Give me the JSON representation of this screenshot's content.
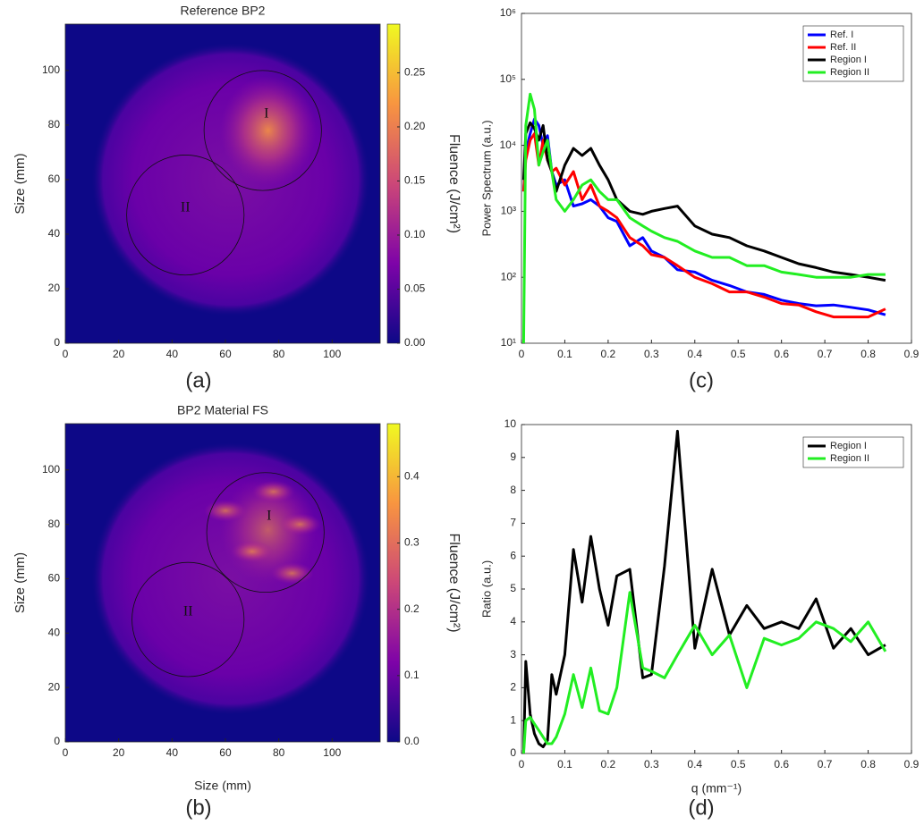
{
  "chart_data": [
    {
      "type": "image",
      "title": "Reference BP2",
      "ylabel": "Size (mm)",
      "panel": "(a)",
      "xlim": [
        0,
        118
      ],
      "ylim": [
        0,
        117
      ],
      "xticks": [
        0,
        20,
        40,
        60,
        80,
        100
      ],
      "yticks": [
        0,
        20,
        40,
        60,
        80,
        100
      ],
      "colorbar": {
        "label": "Fluence (J/cm²)",
        "lim": [
          0,
          0.295
        ],
        "ticks": [
          {
            "value": 0,
            "label": "0.00"
          },
          0.05,
          {
            "value": 0.1,
            "label": "0.10"
          },
          0.15,
          {
            "value": 0.2,
            "label": "0.20"
          },
          0.25
        ]
      },
      "annotations": [
        "I",
        "II"
      ]
    },
    {
      "type": "line",
      "ylabel": "Power Spectrum (a.u.)",
      "panel": "(c)",
      "log_y": true,
      "legend": "upper right",
      "xlim": [
        0,
        0.9
      ],
      "xticks": [
        0,
        0.1,
        0.2,
        0.3,
        0.4,
        0.5,
        0.6,
        0.7,
        0.8,
        0.9
      ],
      "ylim": [
        10,
        1000000
      ],
      "yticks": [
        {
          "value": 10,
          "label": "10¹"
        },
        {
          "value": 100,
          "label": "10²"
        },
        {
          "value": 1000,
          "label": "10³"
        },
        {
          "value": 10000,
          "label": "10⁴"
        },
        {
          "value": 100000,
          "label": "10⁵"
        },
        {
          "value": 1000000,
          "label": "10⁶"
        }
      ],
      "x": [
        0.005,
        0.01,
        0.02,
        0.03,
        0.04,
        0.05,
        0.06,
        0.07,
        0.08,
        0.1,
        0.12,
        0.14,
        0.16,
        0.18,
        0.2,
        0.22,
        0.25,
        0.28,
        0.3,
        0.33,
        0.36,
        0.4,
        0.44,
        0.48,
        0.52,
        0.56,
        0.6,
        0.64,
        0.68,
        0.72,
        0.76,
        0.8,
        0.84
      ],
      "series": [
        {
          "name": "Ref. I",
          "color": "#0000ff",
          "values": [
            2000,
            8000,
            15000,
            25000,
            20000,
            10000,
            14000,
            4000,
            2500,
            3000,
            1200,
            1300,
            1500,
            1200,
            800,
            700,
            300,
            400,
            250,
            200,
            130,
            120,
            90,
            75,
            60,
            55,
            45,
            40,
            37,
            38,
            35,
            32,
            27
          ]
        },
        {
          "name": "Ref. II",
          "color": "#ff0000",
          "values": [
            2000,
            6000,
            12000,
            15000,
            5000,
            12000,
            6000,
            4000,
            4500,
            2500,
            4000,
            1500,
            2500,
            1200,
            1000,
            800,
            400,
            300,
            220,
            200,
            150,
            100,
            80,
            60,
            60,
            50,
            40,
            38,
            30,
            25,
            25,
            25,
            33
          ]
        },
        {
          "name": "Region I",
          "color": "#000000",
          "values": [
            3000,
            15000,
            22000,
            18000,
            12000,
            20000,
            6000,
            4000,
            2000,
            5000,
            9000,
            7000,
            9000,
            5000,
            3000,
            1500,
            1000,
            900,
            1000,
            1100,
            1200,
            600,
            450,
            400,
            300,
            250,
            200,
            160,
            140,
            120,
            110,
            100,
            90
          ]
        },
        {
          "name": "Region II",
          "color": "#22ee22",
          "values": [
            10,
            20000,
            60000,
            35000,
            5000,
            8000,
            12000,
            4000,
            1500,
            1000,
            1500,
            2500,
            3000,
            2000,
            1500,
            1500,
            800,
            600,
            500,
            400,
            350,
            250,
            200,
            200,
            150,
            150,
            120,
            110,
            100,
            100,
            100,
            110,
            110
          ]
        }
      ]
    },
    {
      "type": "image",
      "title": "BP2 Material FS",
      "ylabel": "Size (mm)",
      "xlabel": "Size (mm)",
      "panel": "(b)",
      "xlim": [
        0,
        118
      ],
      "ylim": [
        0,
        117
      ],
      "xticks": [
        0,
        20,
        40,
        60,
        80,
        100
      ],
      "yticks": [
        0,
        20,
        40,
        60,
        80,
        100
      ],
      "colorbar": {
        "label": "Fluence (J/cm²)",
        "lim": [
          0,
          0.48
        ],
        "ticks": [
          {
            "value": 0,
            "label": "0.0"
          },
          0.1,
          0.2,
          0.3,
          0.4
        ]
      },
      "annotations": [
        "I",
        "II"
      ]
    },
    {
      "type": "line",
      "ylabel": "Ratio (a.u.)",
      "xlabel": "q (mm⁻¹)",
      "panel": "(d)",
      "log_y": false,
      "legend": "upper right",
      "xlim": [
        0,
        0.9
      ],
      "xticks": [
        0,
        0.1,
        0.2,
        0.3,
        0.4,
        0.5,
        0.6,
        0.7,
        0.8,
        0.9
      ],
      "ylim": [
        0,
        10
      ],
      "yticks": [
        0,
        1,
        2,
        3,
        4,
        5,
        6,
        7,
        8,
        9,
        10
      ],
      "x": [
        0.005,
        0.01,
        0.02,
        0.03,
        0.04,
        0.05,
        0.06,
        0.07,
        0.08,
        0.1,
        0.12,
        0.14,
        0.16,
        0.18,
        0.2,
        0.22,
        0.25,
        0.28,
        0.3,
        0.33,
        0.36,
        0.4,
        0.44,
        0.48,
        0.52,
        0.56,
        0.6,
        0.64,
        0.68,
        0.72,
        0.76,
        0.8,
        0.84
      ],
      "series": [
        {
          "name": "Region I",
          "color": "#000000",
          "values": [
            0,
            2.8,
            1.2,
            0.6,
            0.3,
            0.2,
            0.4,
            2.4,
            1.8,
            3.0,
            6.2,
            4.6,
            6.6,
            5.0,
            3.9,
            5.4,
            5.6,
            2.3,
            2.4,
            5.7,
            9.8,
            3.2,
            5.6,
            3.6,
            4.5,
            3.8,
            4.0,
            3.8,
            4.7,
            3.2,
            3.8,
            3.0,
            3.3
          ]
        },
        {
          "name": "Region II",
          "color": "#22ee22",
          "values": [
            0,
            1.0,
            1.1,
            0.9,
            0.7,
            0.5,
            0.3,
            0.3,
            0.5,
            1.2,
            2.4,
            1.4,
            2.6,
            1.3,
            1.2,
            2.0,
            4.9,
            2.6,
            2.5,
            2.3,
            3.0,
            3.9,
            3.0,
            3.6,
            2.0,
            3.5,
            3.3,
            3.5,
            4.0,
            3.8,
            3.4,
            4.0,
            3.1
          ]
        }
      ]
    }
  ]
}
